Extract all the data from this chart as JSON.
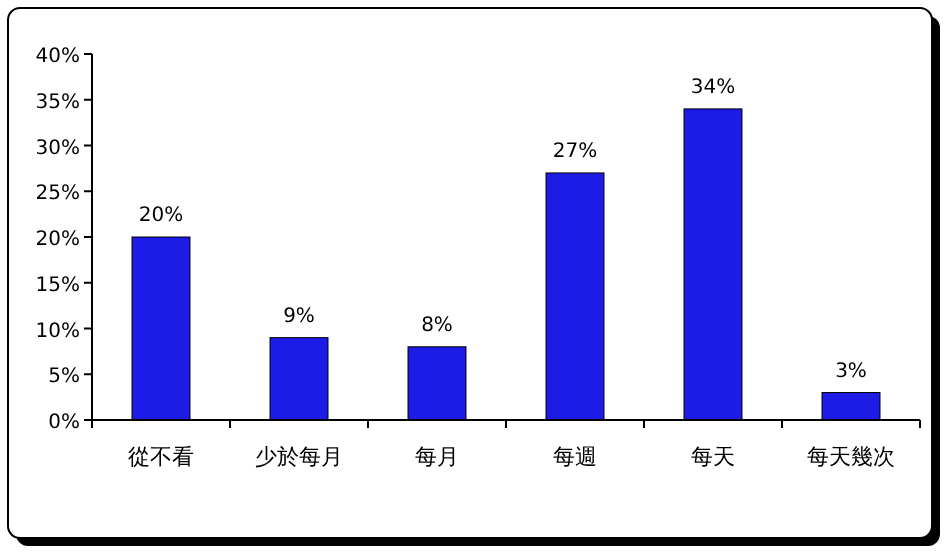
{
  "chart_data": {
    "type": "bar",
    "categories": [
      "從不看",
      "少於每月",
      "每月",
      "每週",
      "每天",
      "每天幾次"
    ],
    "values": [
      20,
      9,
      8,
      27,
      34,
      3
    ],
    "color": "#1c1ce6",
    "ylim": [
      0,
      40
    ],
    "yticks": [
      {
        "value": 0,
        "label": "0%"
      },
      {
        "value": 5,
        "label": "5%"
      },
      {
        "value": 10,
        "label": "10%"
      },
      {
        "value": 15,
        "label": "15%"
      },
      {
        "value": 20,
        "label": "20%"
      },
      {
        "value": 25,
        "label": "25%"
      },
      {
        "value": 30,
        "label": "30%"
      },
      {
        "value": 35,
        "label": "35%"
      },
      {
        "value": 40,
        "label": "40%"
      }
    ],
    "value_labels": [
      "20%",
      "9%",
      "8%",
      "27%",
      "34%",
      "3%"
    ]
  }
}
